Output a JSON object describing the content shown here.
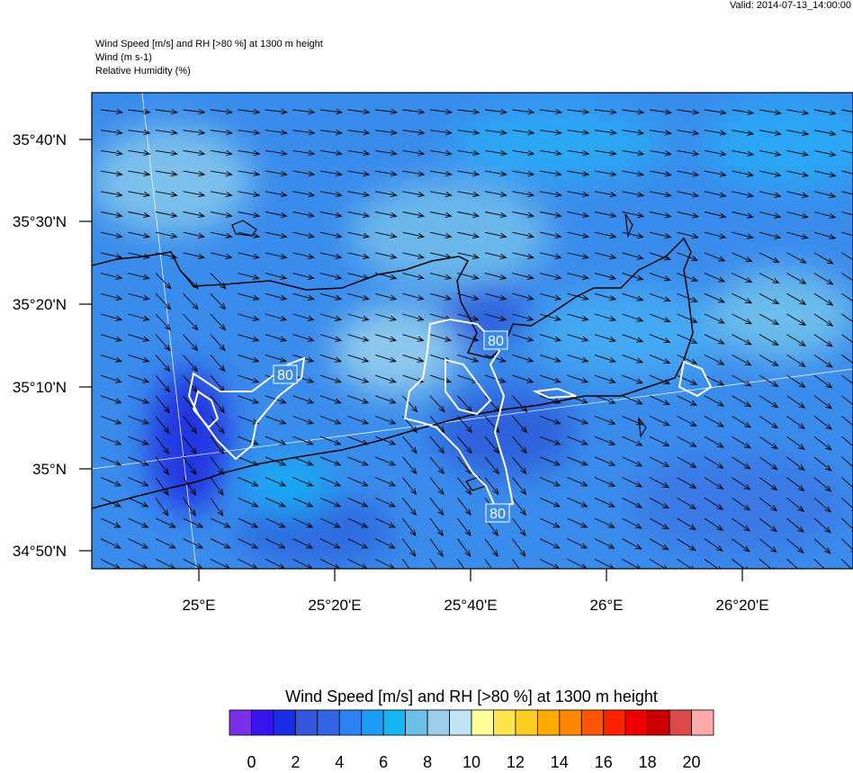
{
  "valid": "Valid: 2014-07-13_14:00:00",
  "header": [
    "Wind Speed [m/s] and RH [>80 %] at 1300 m height",
    "Wind   (m s-1)",
    "Relative Humidity   (%)"
  ],
  "map": {
    "lat_labels": [
      "35°40'N",
      "35°30'N",
      "35°20'N",
      "35°10'N",
      "35°N",
      "34°50'N"
    ],
    "lon_labels": [
      "25°E",
      "25°20'E",
      "25°40'E",
      "26°E",
      "26°20'E"
    ],
    "contour_labels": [
      "80",
      "80",
      "80"
    ]
  },
  "colorbar": {
    "title": "Wind Speed [m/s] and RH [>80 %] at 1300 m height",
    "colors": [
      "#7a2ee6",
      "#3a14ee",
      "#1a2ee8",
      "#3457dc",
      "#3366e4",
      "#2c82f0",
      "#1c9cf4",
      "#14b6f6",
      "#6cbfe8",
      "#9bcdea",
      "#c0e4f2",
      "#ffff99",
      "#ffe64c",
      "#ffcc22",
      "#ffaa00",
      "#ff8800",
      "#ff5500",
      "#ff2200",
      "#ee0000",
      "#cc0000",
      "#dd4848",
      "#ffaaaa"
    ],
    "labels": [
      0,
      2,
      4,
      6,
      8,
      10,
      12,
      14,
      16,
      18,
      20
    ]
  }
}
